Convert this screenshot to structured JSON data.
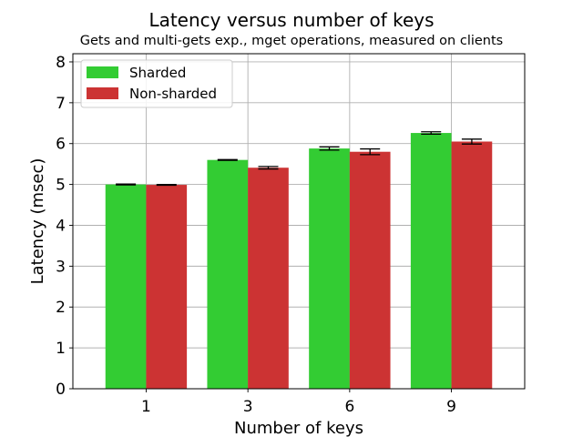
{
  "chart_data": {
    "type": "bar",
    "title": "Latency versus number of keys",
    "subtitle": "Gets and multi-gets exp., mget operations, measured on clients",
    "xlabel": "Number of keys",
    "ylabel": "Latency (msec)",
    "categories": [
      "1",
      "3",
      "6",
      "9"
    ],
    "ylim": [
      0,
      8.2
    ],
    "yticks": [
      "0",
      "1",
      "2",
      "3",
      "4",
      "5",
      "6",
      "7",
      "8"
    ],
    "grid": true,
    "legend_position": "top-left",
    "series": [
      {
        "name": "Sharded",
        "color": "#33cc33",
        "values": [
          5.0,
          5.6,
          5.88,
          6.26
        ],
        "errors": [
          0.01,
          0.01,
          0.04,
          0.03
        ]
      },
      {
        "name": "Non-sharded",
        "color": "#cc3333",
        "values": [
          4.99,
          5.41,
          5.8,
          6.05
        ],
        "errors": [
          0.01,
          0.03,
          0.07,
          0.06
        ]
      }
    ]
  }
}
